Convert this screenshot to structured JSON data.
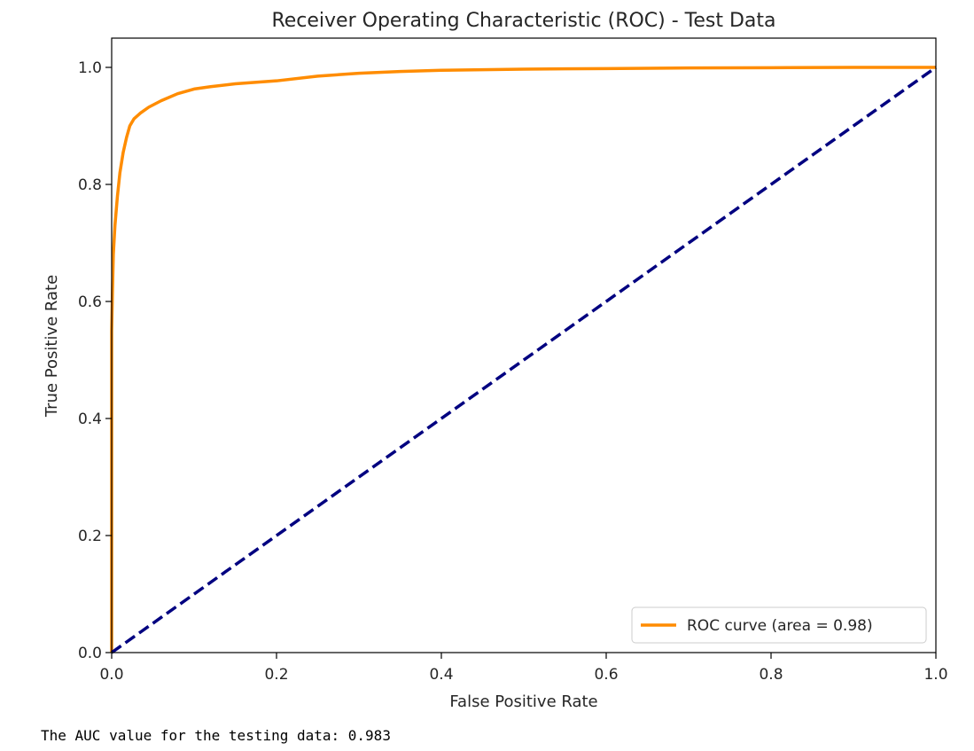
{
  "chart_data": {
    "type": "line",
    "title": "Receiver Operating Characteristic (ROC) - Test Data",
    "xlabel": "False Positive Rate",
    "ylabel": "True Positive Rate",
    "xlim": [
      0.0,
      1.0
    ],
    "ylim": [
      0.0,
      1.05
    ],
    "xticks": [
      "0.0",
      "0.2",
      "0.4",
      "0.6",
      "0.8",
      "1.0"
    ],
    "yticks": [
      "0.0",
      "0.2",
      "0.4",
      "0.6",
      "0.8",
      "1.0"
    ],
    "grid": false,
    "legend_position": "lower-right",
    "series": [
      {
        "name": "ROC curve (area = 0.98)",
        "color": "#ff8c00",
        "style": "solid",
        "x": [
          0.0,
          0.0,
          0.001,
          0.002,
          0.004,
          0.007,
          0.01,
          0.014,
          0.018,
          0.022,
          0.027,
          0.035,
          0.045,
          0.06,
          0.08,
          0.1,
          0.12,
          0.15,
          0.2,
          0.25,
          0.3,
          0.35,
          0.4,
          0.5,
          0.6,
          0.7,
          0.8,
          0.9,
          1.0
        ],
        "y": [
          0.0,
          0.55,
          0.62,
          0.68,
          0.73,
          0.78,
          0.82,
          0.855,
          0.88,
          0.9,
          0.912,
          0.922,
          0.932,
          0.943,
          0.955,
          0.963,
          0.967,
          0.972,
          0.977,
          0.985,
          0.99,
          0.993,
          0.995,
          0.997,
          0.998,
          0.999,
          0.9995,
          1.0,
          1.0
        ]
      },
      {
        "name": "",
        "color": "#000080",
        "style": "dashed",
        "x": [
          0.0,
          1.0
        ],
        "y": [
          0.0,
          1.0
        ]
      }
    ]
  },
  "output": {
    "auc_text": "The AUC value for the testing data: 0.983"
  }
}
